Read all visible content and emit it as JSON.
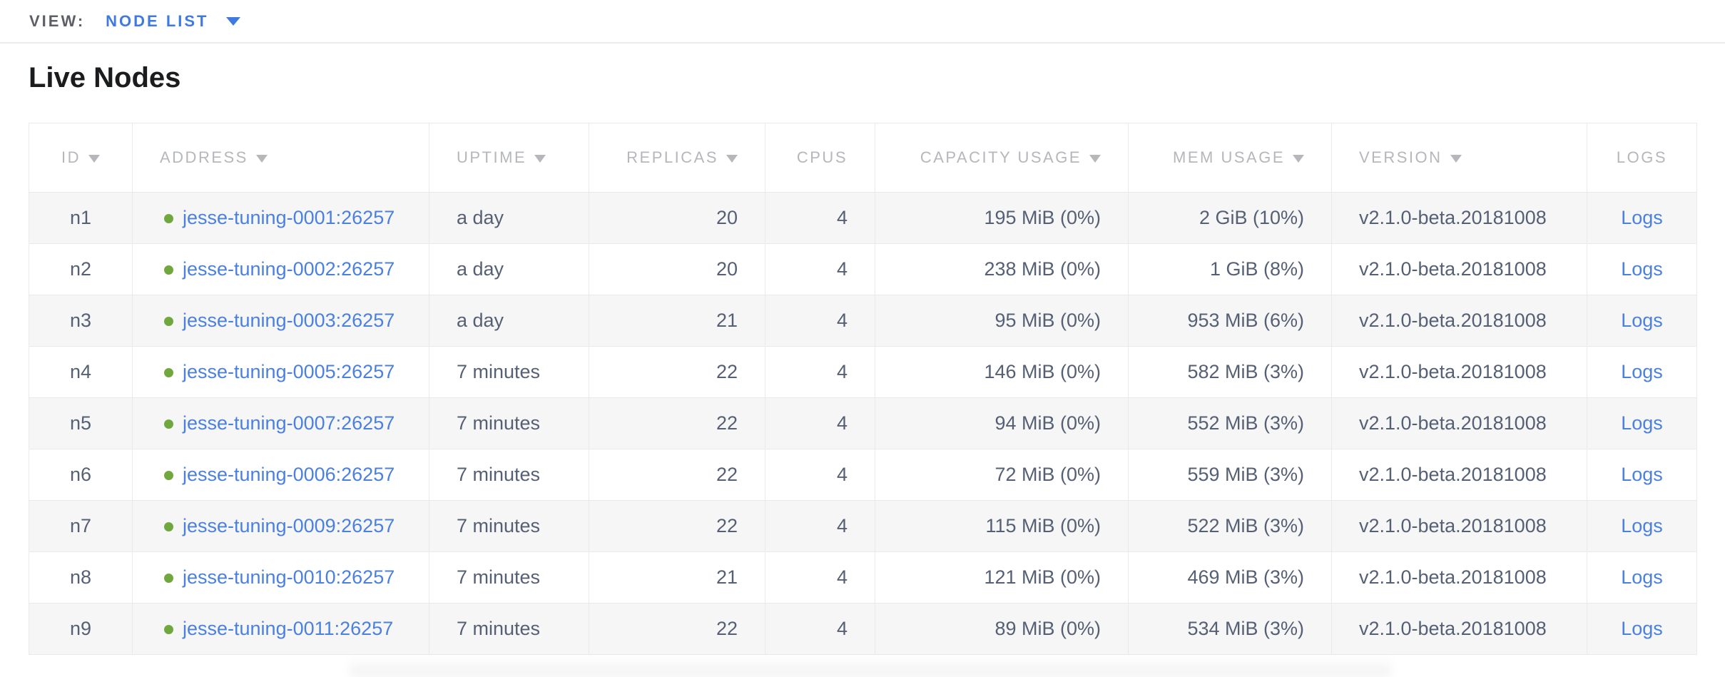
{
  "topbar": {
    "view_label": "VIEW:",
    "view_value": "NODE LIST"
  },
  "page": {
    "title": "Live Nodes"
  },
  "colors": {
    "link_blue": "#4a80e0",
    "accent_blue": "#3e7ae0",
    "status_green": "#70a83d",
    "body_text": "#566074",
    "header_text": "#b5b7bb",
    "row_stripe": "#f6f6f7"
  },
  "icons": {
    "view_caret": "chevron-down-icon",
    "sort": "sort-desc-icon",
    "node_status": "green-status-dot"
  },
  "table": {
    "columns": [
      {
        "key": "id",
        "label": "ID",
        "sortable": true,
        "align": "center"
      },
      {
        "key": "address",
        "label": "ADDRESS",
        "sortable": true,
        "align": "left"
      },
      {
        "key": "uptime",
        "label": "UPTIME",
        "sortable": true,
        "align": "left"
      },
      {
        "key": "replicas",
        "label": "REPLICAS",
        "sortable": true,
        "align": "right"
      },
      {
        "key": "cpus",
        "label": "CPUS",
        "sortable": false,
        "align": "right"
      },
      {
        "key": "capacity",
        "label": "CAPACITY USAGE",
        "sortable": true,
        "align": "right"
      },
      {
        "key": "mem",
        "label": "MEM USAGE",
        "sortable": true,
        "align": "right"
      },
      {
        "key": "version",
        "label": "VERSION",
        "sortable": true,
        "align": "left"
      },
      {
        "key": "logs",
        "label": "LOGS",
        "sortable": false,
        "align": "center"
      }
    ],
    "rows": [
      {
        "id": "n1",
        "address": "jesse-tuning-0001:26257",
        "uptime": "a day",
        "replicas": "20",
        "cpus": "4",
        "capacity": "195 MiB (0%)",
        "mem": "2 GiB (10%)",
        "version": "v2.1.0-beta.20181008",
        "logs": "Logs"
      },
      {
        "id": "n2",
        "address": "jesse-tuning-0002:26257",
        "uptime": "a day",
        "replicas": "20",
        "cpus": "4",
        "capacity": "238 MiB (0%)",
        "mem": "1 GiB (8%)",
        "version": "v2.1.0-beta.20181008",
        "logs": "Logs"
      },
      {
        "id": "n3",
        "address": "jesse-tuning-0003:26257",
        "uptime": "a day",
        "replicas": "21",
        "cpus": "4",
        "capacity": "95 MiB (0%)",
        "mem": "953 MiB (6%)",
        "version": "v2.1.0-beta.20181008",
        "logs": "Logs"
      },
      {
        "id": "n4",
        "address": "jesse-tuning-0005:26257",
        "uptime": "7 minutes",
        "replicas": "22",
        "cpus": "4",
        "capacity": "146 MiB (0%)",
        "mem": "582 MiB (3%)",
        "version": "v2.1.0-beta.20181008",
        "logs": "Logs"
      },
      {
        "id": "n5",
        "address": "jesse-tuning-0007:26257",
        "uptime": "7 minutes",
        "replicas": "22",
        "cpus": "4",
        "capacity": "94 MiB (0%)",
        "mem": "552 MiB (3%)",
        "version": "v2.1.0-beta.20181008",
        "logs": "Logs"
      },
      {
        "id": "n6",
        "address": "jesse-tuning-0006:26257",
        "uptime": "7 minutes",
        "replicas": "22",
        "cpus": "4",
        "capacity": "72 MiB (0%)",
        "mem": "559 MiB (3%)",
        "version": "v2.1.0-beta.20181008",
        "logs": "Logs"
      },
      {
        "id": "n7",
        "address": "jesse-tuning-0009:26257",
        "uptime": "7 minutes",
        "replicas": "22",
        "cpus": "4",
        "capacity": "115 MiB (0%)",
        "mem": "522 MiB (3%)",
        "version": "v2.1.0-beta.20181008",
        "logs": "Logs"
      },
      {
        "id": "n8",
        "address": "jesse-tuning-0010:26257",
        "uptime": "7 minutes",
        "replicas": "21",
        "cpus": "4",
        "capacity": "121 MiB (0%)",
        "mem": "469 MiB (3%)",
        "version": "v2.1.0-beta.20181008",
        "logs": "Logs"
      },
      {
        "id": "n9",
        "address": "jesse-tuning-0011:26257",
        "uptime": "7 minutes",
        "replicas": "22",
        "cpus": "4",
        "capacity": "89 MiB (0%)",
        "mem": "534 MiB (3%)",
        "version": "v2.1.0-beta.20181008",
        "logs": "Logs"
      }
    ]
  }
}
